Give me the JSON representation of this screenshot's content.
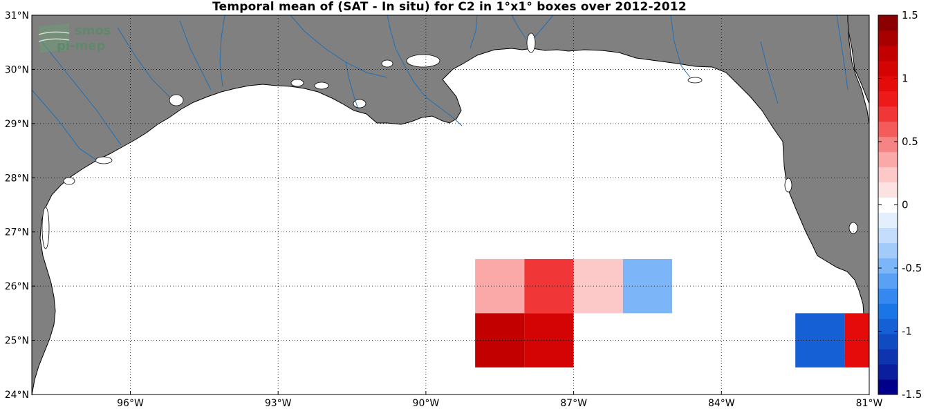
{
  "title": "Temporal mean of (SAT - In situ) for C2 in 1°x1° boxes over 2012-2012",
  "logo": {
    "line1": "smos",
    "line2": "pi-mep"
  },
  "map": {
    "lon_range": [
      -98,
      -81
    ],
    "lat_range": [
      24,
      31
    ],
    "lon_ticks": [
      {
        "value": -96,
        "label": "96°W"
      },
      {
        "value": -93,
        "label": "93°W"
      },
      {
        "value": -90,
        "label": "90°W"
      },
      {
        "value": -87,
        "label": "87°W"
      },
      {
        "value": -84,
        "label": "84°W"
      },
      {
        "value": -81,
        "label": "81°W"
      }
    ],
    "lat_ticks": [
      {
        "value": 24,
        "label": "24°N"
      },
      {
        "value": 25,
        "label": "25°N"
      },
      {
        "value": 26,
        "label": "26°N"
      },
      {
        "value": 27,
        "label": "27°N"
      },
      {
        "value": 28,
        "label": "28°N"
      },
      {
        "value": 29,
        "label": "29°N"
      },
      {
        "value": 30,
        "label": "30°N"
      },
      {
        "value": 31,
        "label": "31°N"
      }
    ],
    "grid": "dotted",
    "land_color": "#808080",
    "ocean_color": "#ffffff",
    "river_color": "#1f6fb5"
  },
  "chart_data": {
    "type": "heatmap",
    "cell_size_deg": 1,
    "cells": [
      {
        "lon": -88.5,
        "lat": 26,
        "value": 0.4
      },
      {
        "lon": -87.5,
        "lat": 26,
        "value": 0.75
      },
      {
        "lon": -86.5,
        "lat": 26,
        "value": 0.25
      },
      {
        "lon": -85.5,
        "lat": 26,
        "value": -0.5
      },
      {
        "lon": -88.5,
        "lat": 25,
        "value": 1.25
      },
      {
        "lon": -87.5,
        "lat": 25,
        "value": 1.1
      },
      {
        "lon": -82.0,
        "lat": 25,
        "value": -0.95
      },
      {
        "lon": -81.25,
        "lat": 25,
        "value": 0.95
      }
    ]
  },
  "colorbar": {
    "range": [
      -1.5,
      1.5
    ],
    "ticks": [
      {
        "value": 1.5,
        "label": "1.5"
      },
      {
        "value": 1,
        "label": "1"
      },
      {
        "value": 0.5,
        "label": "0.5"
      },
      {
        "value": 0,
        "label": "0"
      },
      {
        "value": -0.5,
        "label": "-0.5"
      },
      {
        "value": -1,
        "label": "-1"
      },
      {
        "value": -1.5,
        "label": "-1.5"
      }
    ],
    "colors": [
      "#00008b",
      "#0a1e9e",
      "#0f34b0",
      "#114bc2",
      "#1560d4",
      "#1a76e6",
      "#3588f0",
      "#5aa0f5",
      "#7db6f8",
      "#a2cbfa",
      "#c4ddfc",
      "#e4effe",
      "#ffffff",
      "#fde2e2",
      "#fcc8c8",
      "#faa8a8",
      "#f78484",
      "#f45c5c",
      "#f03636",
      "#ee1a1a",
      "#e60b0b",
      "#d40404",
      "#c20000",
      "#a80000",
      "#8b0000"
    ]
  }
}
